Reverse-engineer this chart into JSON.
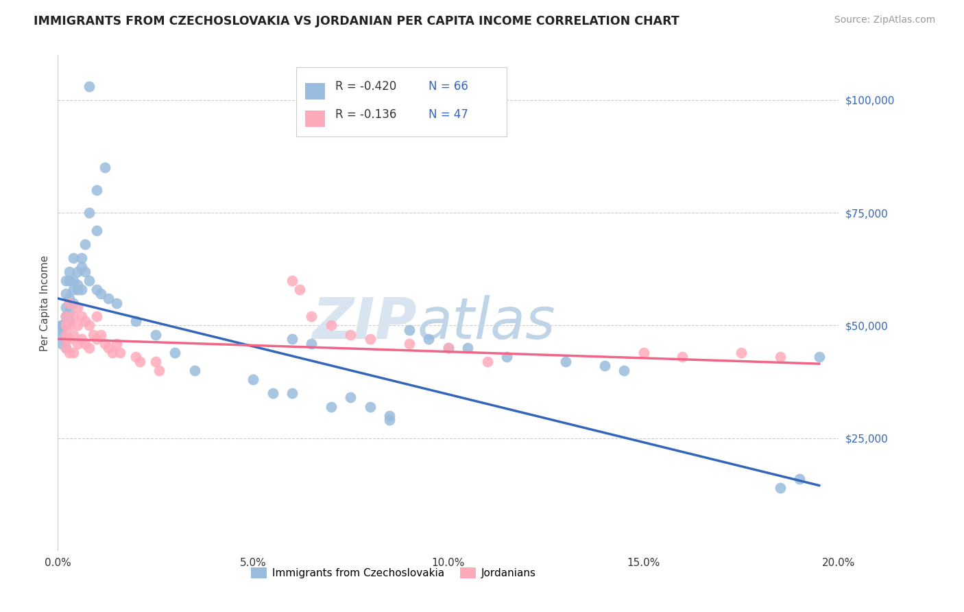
{
  "title": "IMMIGRANTS FROM CZECHOSLOVAKIA VS JORDANIAN PER CAPITA INCOME CORRELATION CHART",
  "source": "Source: ZipAtlas.com",
  "ylabel": "Per Capita Income",
  "xlim": [
    0.0,
    0.2
  ],
  "ylim": [
    0,
    110000
  ],
  "yticks": [
    0,
    25000,
    50000,
    75000,
    100000
  ],
  "ytick_labels": [
    "",
    "$25,000",
    "$50,000",
    "$75,000",
    "$100,000"
  ],
  "xticks": [
    0.0,
    0.05,
    0.1,
    0.15,
    0.2
  ],
  "xtick_labels": [
    "0.0%",
    "5.0%",
    "10.0%",
    "15.0%",
    "20.0%"
  ],
  "blue_color": "#99BBDD",
  "pink_color": "#FFAABB",
  "line_blue": "#3366BB",
  "line_pink": "#EE6688",
  "legend_r_blue": "-0.420",
  "legend_n_blue": "66",
  "legend_r_pink": "-0.136",
  "legend_n_pink": "47",
  "blue_scatter_x": [
    0.008,
    0.012,
    0.01,
    0.008,
    0.01,
    0.007,
    0.004,
    0.006,
    0.003,
    0.005,
    0.002,
    0.003,
    0.004,
    0.005,
    0.004,
    0.005,
    0.006,
    0.002,
    0.003,
    0.003,
    0.004,
    0.002,
    0.003,
    0.002,
    0.002,
    0.003,
    0.002,
    0.001,
    0.001,
    0.001,
    0.001,
    0.002,
    0.001,
    0.002,
    0.006,
    0.007,
    0.008,
    0.01,
    0.011,
    0.013,
    0.015,
    0.06,
    0.065,
    0.09,
    0.095,
    0.1,
    0.105,
    0.115,
    0.13,
    0.14,
    0.145,
    0.06,
    0.075,
    0.08,
    0.085,
    0.085,
    0.02,
    0.025,
    0.03,
    0.035,
    0.05,
    0.055,
    0.07,
    0.195,
    0.19,
    0.185
  ],
  "blue_scatter_y": [
    103000,
    85000,
    80000,
    75000,
    71000,
    68000,
    65000,
    63000,
    62000,
    62000,
    60000,
    60000,
    60000,
    59000,
    58000,
    58000,
    58000,
    57000,
    56000,
    55000,
    55000,
    54000,
    53000,
    52000,
    52000,
    51000,
    50000,
    50000,
    50000,
    49000,
    48000,
    47000,
    46000,
    45000,
    65000,
    62000,
    60000,
    58000,
    57000,
    56000,
    55000,
    47000,
    46000,
    49000,
    47000,
    45000,
    45000,
    43000,
    42000,
    41000,
    40000,
    35000,
    34000,
    32000,
    30000,
    29000,
    51000,
    48000,
    44000,
    40000,
    38000,
    35000,
    32000,
    43000,
    16000,
    14000
  ],
  "pink_scatter_x": [
    0.002,
    0.002,
    0.002,
    0.002,
    0.002,
    0.003,
    0.003,
    0.003,
    0.003,
    0.004,
    0.004,
    0.004,
    0.005,
    0.005,
    0.005,
    0.006,
    0.006,
    0.007,
    0.007,
    0.008,
    0.008,
    0.009,
    0.01,
    0.01,
    0.011,
    0.012,
    0.013,
    0.014,
    0.015,
    0.016,
    0.02,
    0.021,
    0.025,
    0.026,
    0.06,
    0.062,
    0.065,
    0.07,
    0.075,
    0.08,
    0.09,
    0.1,
    0.11,
    0.15,
    0.16,
    0.175,
    0.185
  ],
  "pink_scatter_y": [
    52000,
    50000,
    48000,
    47000,
    45000,
    55000,
    50000,
    47000,
    44000,
    52000,
    48000,
    44000,
    54000,
    50000,
    46000,
    52000,
    47000,
    51000,
    46000,
    50000,
    45000,
    48000,
    52000,
    47000,
    48000,
    46000,
    45000,
    44000,
    46000,
    44000,
    43000,
    42000,
    42000,
    40000,
    60000,
    58000,
    52000,
    50000,
    48000,
    47000,
    46000,
    45000,
    42000,
    44000,
    43000,
    44000,
    43000
  ]
}
